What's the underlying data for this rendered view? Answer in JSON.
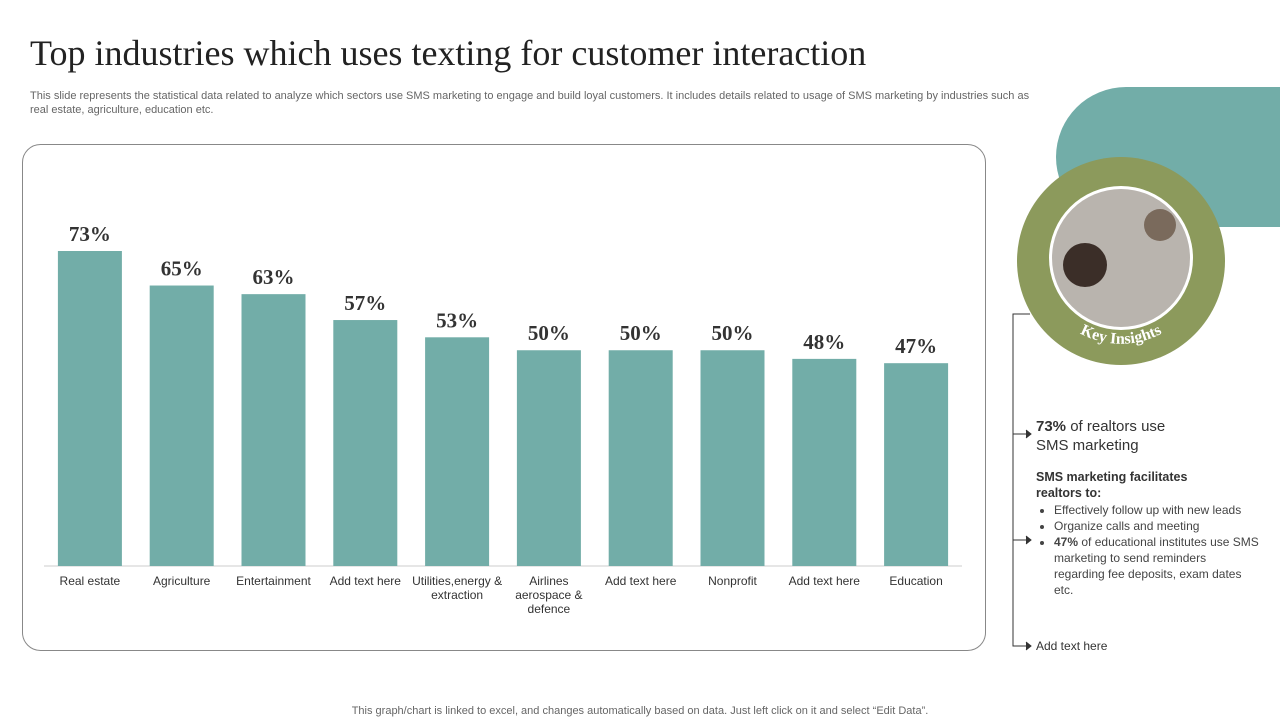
{
  "header": {
    "title": "Top industries which uses texting for customer interaction",
    "subtitle": "This slide represents the statistical data related to analyze which sectors use SMS marketing to engage and build loyal customers. It includes details related to usage of SMS marketing by industries such as real estate, agriculture, education etc."
  },
  "chart_data": {
    "type": "bar",
    "categories": [
      "Real estate",
      "Agriculture",
      "Entertainment",
      "Add text here",
      "Utilities,energy & extraction",
      "Airlines aerospace & defence",
      "Add text here",
      "Nonprofit",
      "Add text here",
      "Education"
    ],
    "values": [
      73,
      65,
      63,
      57,
      53,
      50,
      50,
      50,
      48,
      47
    ],
    "value_labels": [
      "73%",
      "65%",
      "63%",
      "57%",
      "53%",
      "50%",
      "50%",
      "50%",
      "48%",
      "47%"
    ],
    "color": "#72ada8"
  },
  "insights": {
    "badge": "Key Insights",
    "stat": {
      "bold": "73%",
      "text": "of realtors use SMS marketing"
    },
    "heading": "SMS marketing facilitates realtors to:",
    "bullets": [
      {
        "text": "Effectively follow up with new leads"
      },
      {
        "text": "Organize calls and meeting"
      },
      {
        "bold": "47%",
        "text": "of educational institutes use SMS marketing to send reminders regarding fee deposits, exam dates etc."
      }
    ],
    "footer": "Add text here"
  },
  "footer": "This graph/chart is linked to excel, and changes automatically based on data. Just left click on it and select “Edit Data”."
}
